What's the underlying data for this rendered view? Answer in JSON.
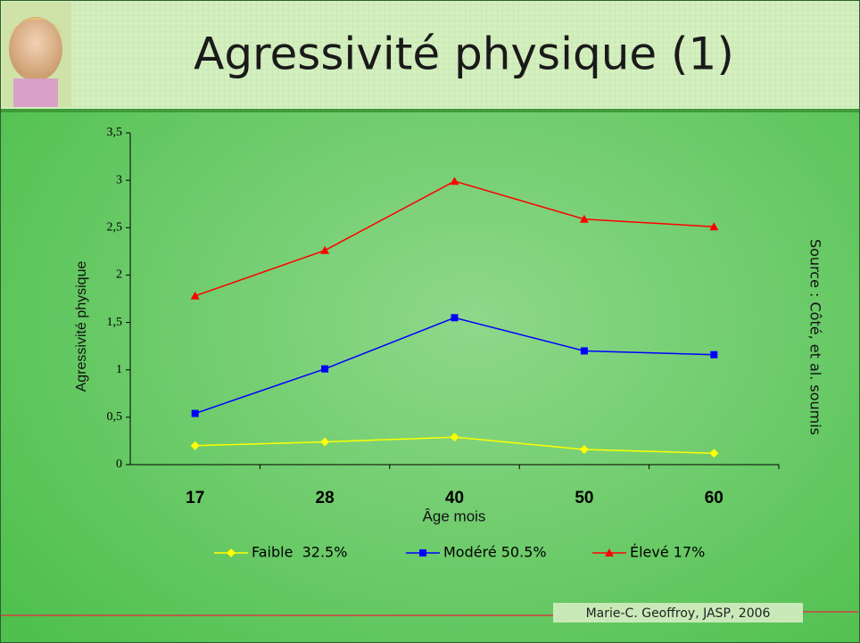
{
  "chart_data": {
    "type": "line",
    "title": "Agressivité physique (1)",
    "categories": [
      "17",
      "28",
      "40",
      "50",
      "60"
    ],
    "series": [
      {
        "name": "Faible  32.5%",
        "color": "#ffff00",
        "marker": "diamond",
        "values": [
          0.2,
          0.24,
          0.29,
          0.16,
          0.12
        ]
      },
      {
        "name": "Modéré 50.5%",
        "color": "#0000ff",
        "marker": "square",
        "values": [
          0.54,
          1.01,
          1.55,
          1.2,
          1.16
        ]
      },
      {
        "name": "Élevé 17%",
        "color": "#ff0000",
        "marker": "triangle",
        "values": [
          1.78,
          2.26,
          2.99,
          2.59,
          2.51
        ]
      }
    ],
    "ylim": [
      0,
      3.5
    ],
    "yticks": [
      0,
      {
        "value": 0.5,
        "label": "0,5"
      },
      1,
      {
        "value": 1.5,
        "label": "1,5"
      },
      2,
      {
        "value": 2.5,
        "label": "2,5"
      },
      3,
      {
        "value": 3.5,
        "label": "3,5"
      }
    ],
    "ylabel": "Agressivité physique",
    "xlabel": "Âge mois",
    "source": "Source : Côté, et al. soumis",
    "footer": "Marie-C. Geoffroy, JASP, 2006"
  }
}
